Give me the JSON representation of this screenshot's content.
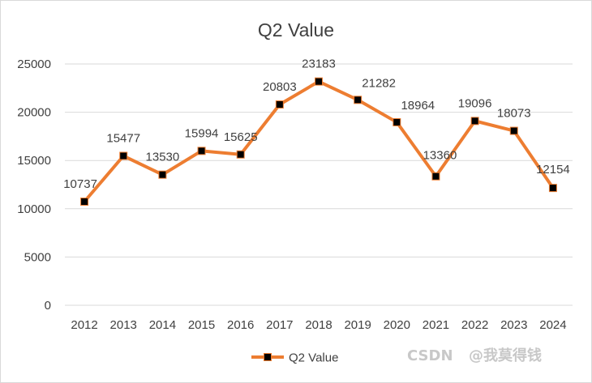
{
  "chart_data": {
    "type": "line",
    "title": "Q2 Value",
    "xlabel": "",
    "ylabel": "",
    "categories": [
      "2012",
      "2013",
      "2014",
      "2015",
      "2016",
      "2017",
      "2018",
      "2019",
      "2020",
      "2021",
      "2022",
      "2023",
      "2024"
    ],
    "series": [
      {
        "name": "Q2 Value",
        "values": [
          10737,
          15477,
          13530,
          15994,
          15625,
          20803,
          23183,
          21282,
          18964,
          13360,
          19096,
          18073,
          12154
        ],
        "color": "#ED7D31",
        "marker_color": "#000000"
      }
    ],
    "ylim": [
      0,
      25000
    ],
    "yticks": [
      0,
      5000,
      10000,
      15000,
      20000,
      25000
    ],
    "grid": true,
    "legend_position": "bottom",
    "data_labels": true
  },
  "watermark": {
    "text": "@我莫得钱",
    "logo_text": "CSDN"
  }
}
